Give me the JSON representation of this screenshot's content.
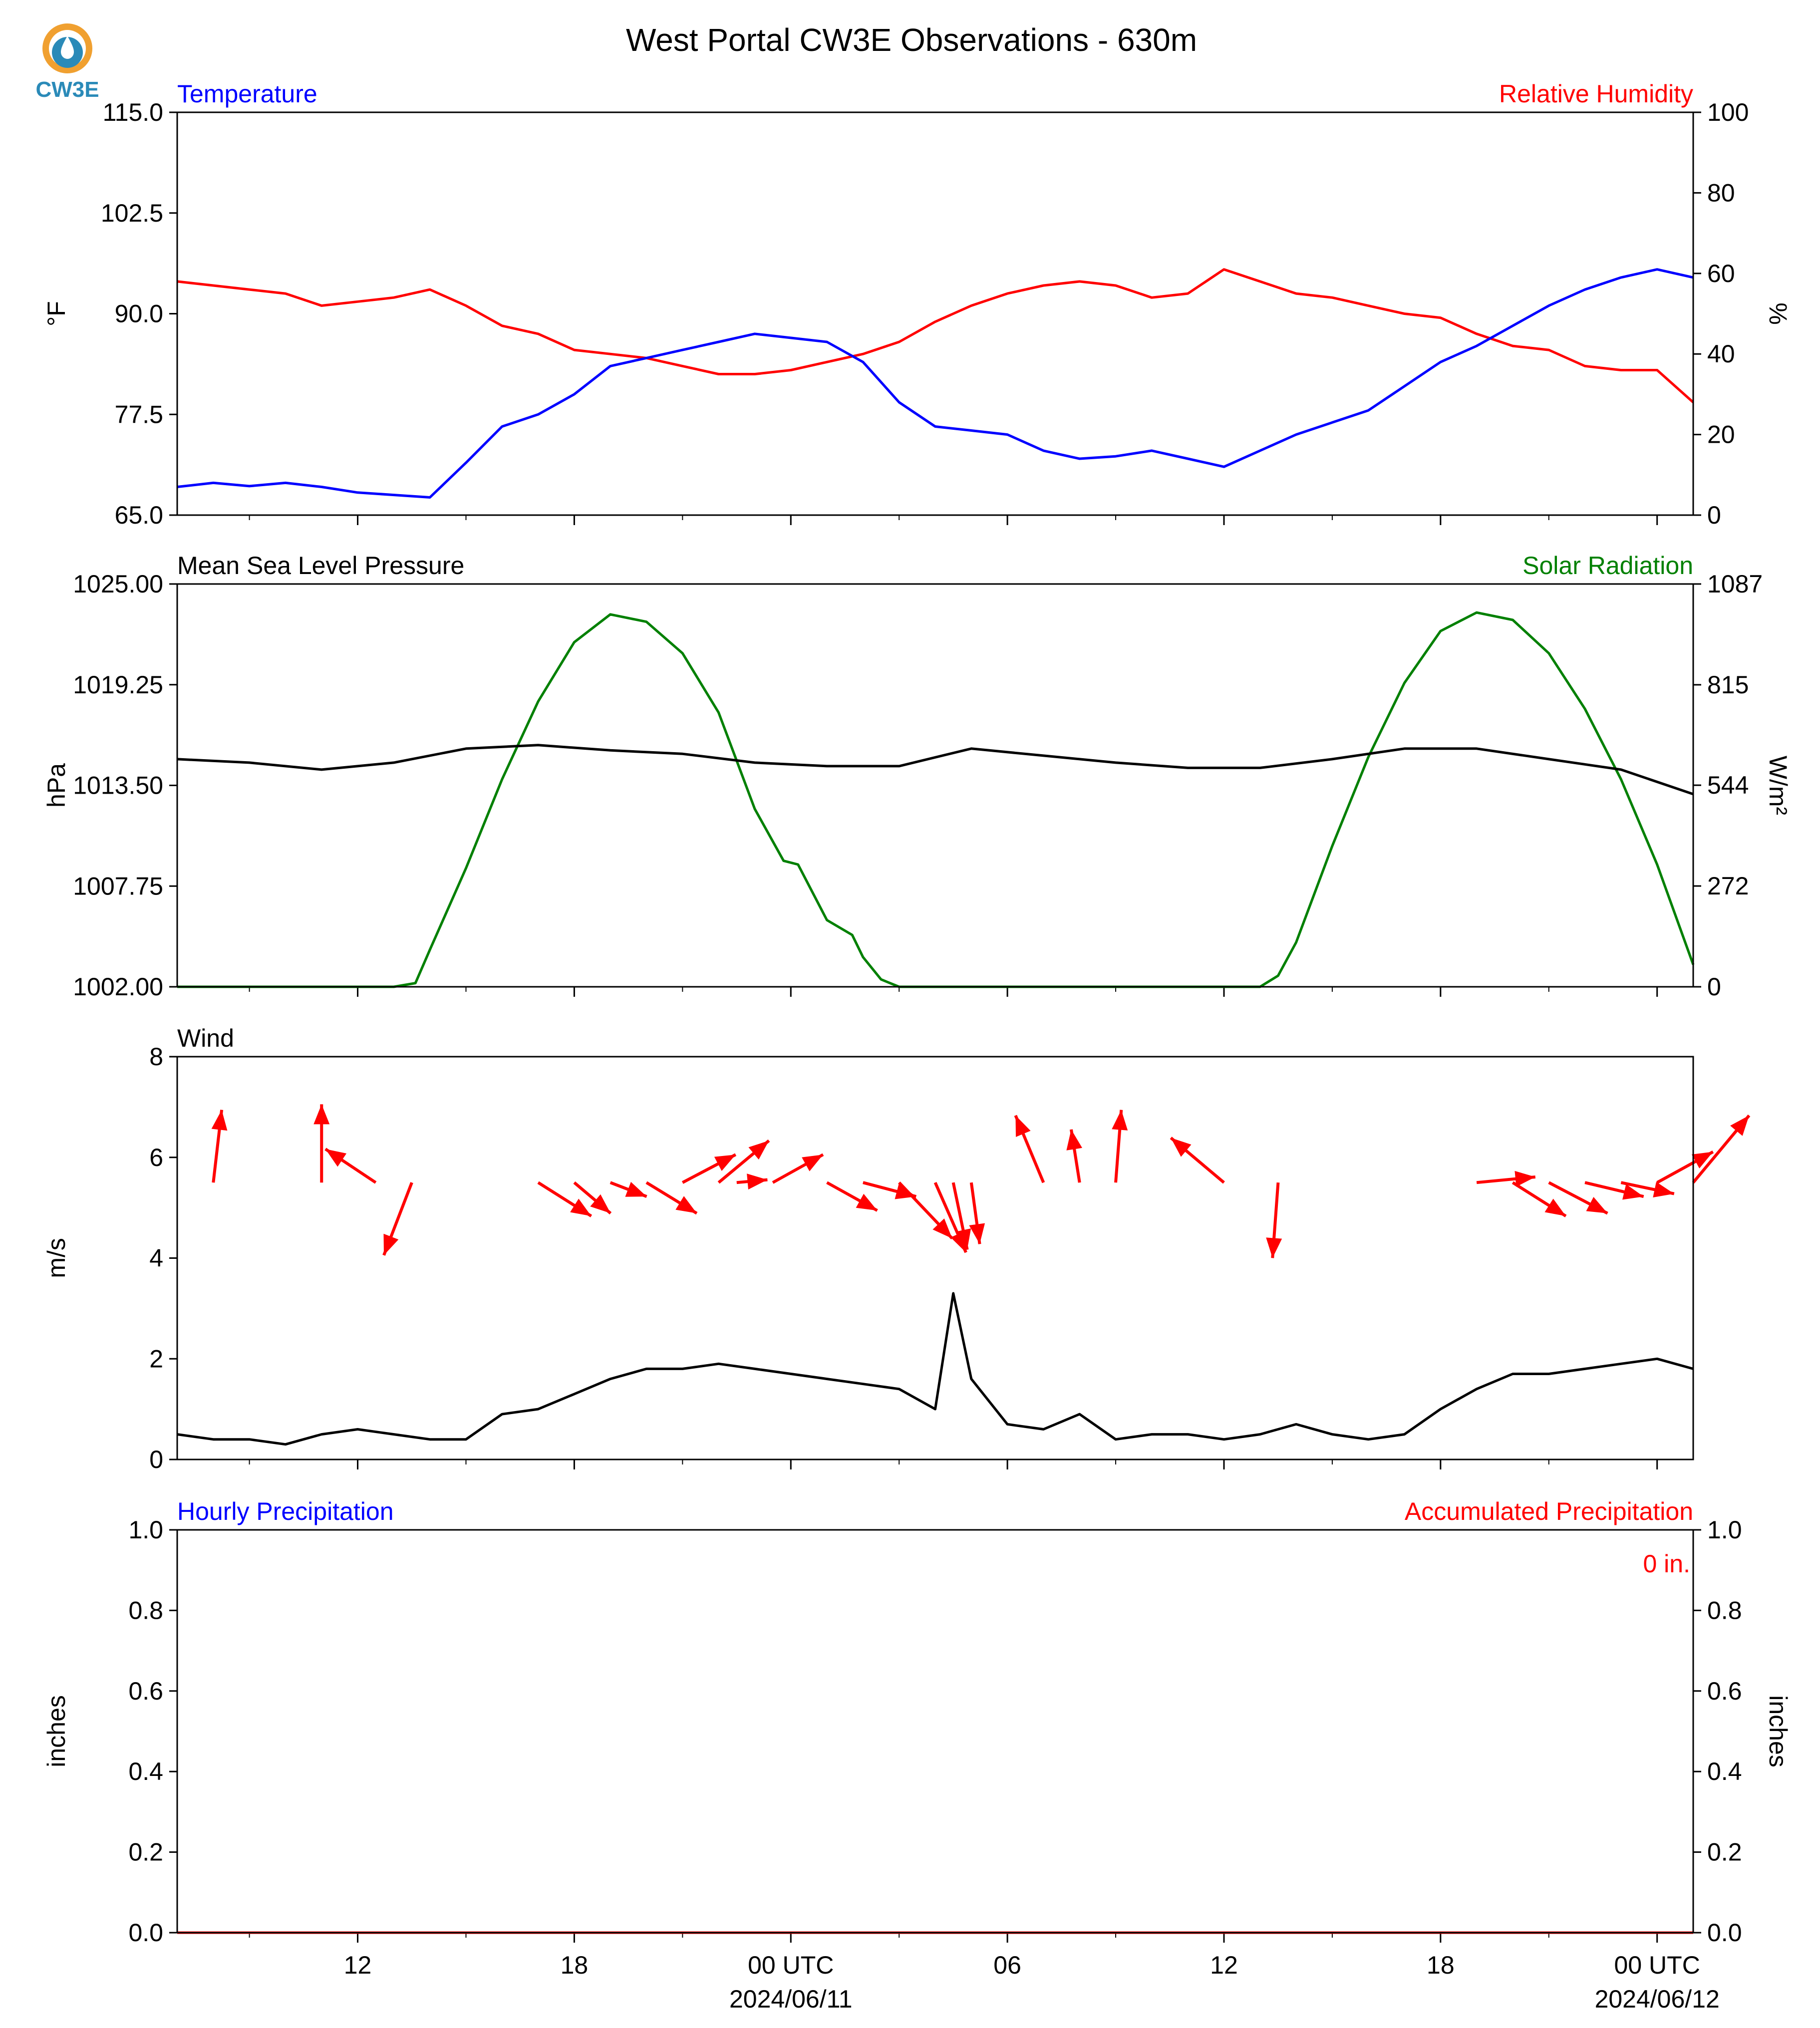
{
  "title": "West Portal CW3E Observations - 630m",
  "logo": {
    "text": "CW3E",
    "icon": "cw3e-logo-icon"
  },
  "colors": {
    "temperature": "#0000ff",
    "humidity": "#ff0000",
    "pressure": "#000000",
    "solar": "#008000",
    "wind_speed": "#000000",
    "wind_arrow": "#ff0000",
    "hourly_precip": "#0000ff",
    "accum_precip": "#ff0000",
    "logo_orange": "#f0a030",
    "logo_blue": "#2a8ab8"
  },
  "x_axis": {
    "tick_labels": [
      "12",
      "18",
      "00 UTC",
      "06",
      "12",
      "18",
      "00 UTC"
    ],
    "tick_hours": [
      12,
      18,
      24,
      30,
      36,
      42,
      48
    ],
    "date_labels": [
      "2024/06/11",
      "2024/06/12"
    ],
    "date_hours": [
      24,
      48
    ],
    "minor_hours": [
      9,
      15,
      21,
      27,
      33,
      39,
      45
    ],
    "range_hours": [
      7,
      49
    ]
  },
  "chart_data": [
    {
      "type": "line",
      "panel": "temperature_humidity",
      "left_title": "Temperature",
      "right_title": "Relative Humidity",
      "ylabel": "°F",
      "ylabel_right": "%",
      "ylim": [
        65.0,
        115.0
      ],
      "ylim_right": [
        0,
        100
      ],
      "yticks": [
        "65.0",
        "77.5",
        "90.0",
        "102.5",
        "115.0"
      ],
      "yticks_right": [
        "0",
        "20",
        "40",
        "60",
        "80",
        "100"
      ],
      "series": [
        {
          "name": "Temperature",
          "axis": "left",
          "x": [
            7,
            8,
            9,
            10,
            11,
            12,
            13,
            14,
            15,
            16,
            17,
            18,
            19,
            20,
            21,
            22,
            23,
            24,
            25,
            26,
            27,
            28,
            29,
            30,
            31,
            32,
            33,
            34,
            35,
            36,
            37,
            38,
            39,
            40,
            41,
            42,
            43,
            44,
            45,
            46,
            47,
            48,
            49
          ],
          "y": [
            68.5,
            69.0,
            68.6,
            69.0,
            68.5,
            67.8,
            67.5,
            67.2,
            71.5,
            76.0,
            77.5,
            80.0,
            83.5,
            84.5,
            85.5,
            86.5,
            87.5,
            87.0,
            86.5,
            84.0,
            79.0,
            76.0,
            75.5,
            75.0,
            73.0,
            72.0,
            72.3,
            73.0,
            72.0,
            71.0,
            73.0,
            75.0,
            76.5,
            78.0,
            81.0,
            84.0,
            86.0,
            88.5,
            91.0,
            93.0,
            94.5,
            95.5,
            94.5
          ]
        },
        {
          "name": "Relative Humidity",
          "axis": "right",
          "x": [
            7,
            8,
            9,
            10,
            11,
            12,
            13,
            14,
            15,
            16,
            17,
            18,
            19,
            20,
            21,
            22,
            23,
            24,
            25,
            26,
            27,
            28,
            29,
            30,
            31,
            32,
            33,
            34,
            35,
            36,
            37,
            38,
            39,
            40,
            41,
            42,
            43,
            44,
            45,
            46,
            47,
            48,
            49
          ],
          "y": [
            58,
            57,
            56,
            55,
            52,
            53,
            54,
            56,
            52,
            47,
            45,
            41,
            40,
            39,
            37,
            35,
            35,
            36,
            38,
            40,
            43,
            48,
            52,
            55,
            57,
            58,
            57,
            54,
            55,
            61,
            58,
            55,
            54,
            52,
            50,
            49,
            45,
            42,
            41,
            37,
            36,
            36,
            28
          ]
        }
      ]
    },
    {
      "type": "line",
      "panel": "pressure_solar",
      "left_title": "Mean Sea Level Pressure",
      "right_title": "Solar Radiation",
      "ylabel": "hPa",
      "ylabel_right": "W/m²",
      "ylim": [
        1002.0,
        1025.0
      ],
      "ylim_right": [
        0,
        1087
      ],
      "yticks": [
        "1002.00",
        "1007.75",
        "1013.50",
        "1019.25",
        "1025.00"
      ],
      "yticks_right": [
        "0",
        "272",
        "544",
        "815",
        "1087"
      ],
      "series": [
        {
          "name": "Mean Sea Level Pressure",
          "axis": "left",
          "x": [
            7,
            9,
            11,
            13,
            15,
            17,
            19,
            21,
            23,
            25,
            27,
            29,
            31,
            33,
            35,
            37,
            39,
            41,
            43,
            45,
            47,
            49
          ],
          "y": [
            1015.0,
            1014.8,
            1014.4,
            1014.8,
            1015.6,
            1015.8,
            1015.5,
            1015.3,
            1014.8,
            1014.6,
            1014.6,
            1015.6,
            1015.2,
            1014.8,
            1014.5,
            1014.5,
            1015.0,
            1015.6,
            1015.6,
            1015.0,
            1014.4,
            1013.0
          ]
        },
        {
          "name": "Solar Radiation",
          "axis": "right",
          "x": [
            7,
            13,
            13.6,
            14,
            15,
            16,
            17,
            18,
            19,
            20,
            21,
            22,
            23,
            23.8,
            24.2,
            25,
            25.7,
            26,
            26.5,
            27,
            28,
            37,
            37.5,
            38,
            39,
            40,
            41,
            42,
            43,
            44,
            45,
            46,
            47,
            48,
            49
          ],
          "y": [
            0,
            0,
            10,
            100,
            320,
            560,
            770,
            930,
            1005,
            985,
            900,
            740,
            480,
            340,
            330,
            180,
            140,
            80,
            20,
            0,
            0,
            0,
            30,
            120,
            380,
            620,
            820,
            960,
            1010,
            990,
            900,
            750,
            560,
            330,
            60
          ]
        }
      ]
    },
    {
      "type": "line",
      "panel": "wind",
      "left_title": "Wind",
      "ylabel": "m/s",
      "ylim": [
        0,
        8
      ],
      "yticks": [
        "0",
        "2",
        "4",
        "6",
        "8"
      ],
      "series": [
        {
          "name": "Wind",
          "x": [
            7,
            8,
            9,
            10,
            11,
            12,
            13,
            14,
            15,
            16,
            17,
            18,
            19,
            20,
            21,
            22,
            23,
            24,
            25,
            26,
            27,
            28,
            28.5,
            29,
            30,
            31,
            32,
            33,
            34,
            35,
            36,
            37,
            38,
            39,
            40,
            41,
            42,
            43,
            44,
            45,
            46,
            47,
            48,
            49
          ],
          "y": [
            0.5,
            0.4,
            0.4,
            0.3,
            0.5,
            0.6,
            0.5,
            0.4,
            0.4,
            0.9,
            1.0,
            1.3,
            1.6,
            1.8,
            1.8,
            1.9,
            1.8,
            1.7,
            1.6,
            1.5,
            1.4,
            1.0,
            3.3,
            1.6,
            0.7,
            0.6,
            0.9,
            0.4,
            0.5,
            0.5,
            0.4,
            0.5,
            0.7,
            0.5,
            0.4,
            0.5,
            1.0,
            1.4,
            1.7,
            1.7,
            1.8,
            1.9,
            2.0,
            1.8
          ]
        }
      ],
      "wind_vectors": {
        "x": [
          8,
          11,
          12.5,
          13.5,
          17,
          18,
          19,
          20,
          21,
          22,
          22.5,
          23.5,
          25,
          26,
          27,
          28,
          28.5,
          29,
          31,
          32,
          33,
          36,
          37.5,
          43,
          44,
          45,
          46,
          47,
          48,
          49
        ],
        "u": [
          0.3,
          0.0,
          -1.8,
          -1.0,
          1.9,
          1.3,
          1.3,
          1.8,
          1.9,
          1.8,
          1.1,
          1.8,
          1.8,
          1.9,
          1.9,
          1.1,
          0.5,
          0.3,
          -1.0,
          -0.3,
          0.2,
          -1.9,
          -0.2,
          2.1,
          1.9,
          2.1,
          2.1,
          1.9,
          2.0,
          2.0
        ],
        "v": [
          2.6,
          2.8,
          1.2,
          -2.6,
          -1.2,
          -1.1,
          -0.5,
          -1.1,
          1.0,
          1.5,
          0.1,
          1.0,
          -1.0,
          -0.5,
          -2.0,
          -2.5,
          -2.4,
          -2.2,
          2.4,
          1.9,
          2.6,
          1.6,
          -2.7,
          0.2,
          -1.2,
          -1.1,
          -0.5,
          -0.4,
          1.1,
          2.4
        ]
      }
    },
    {
      "type": "line",
      "panel": "precipitation",
      "left_title": "Hourly Precipitation",
      "right_title": "Accumulated Precipitation",
      "ylabel": "inches",
      "ylabel_right": "inches",
      "ylim": [
        0.0,
        1.0
      ],
      "ylim_right": [
        0.0,
        1.0
      ],
      "yticks": [
        "0.0",
        "0.2",
        "0.4",
        "0.6",
        "0.8",
        "1.0"
      ],
      "yticks_right": [
        "0.0",
        "0.2",
        "0.4",
        "0.6",
        "0.8",
        "1.0"
      ],
      "accumulated_label": "0 in.",
      "series": [
        {
          "name": "Hourly Precipitation",
          "axis": "left",
          "x": [
            7,
            49
          ],
          "y": [
            0,
            0
          ]
        },
        {
          "name": "Accumulated Precipitation",
          "axis": "right",
          "x": [
            7,
            49
          ],
          "y": [
            0,
            0
          ]
        }
      ]
    }
  ]
}
